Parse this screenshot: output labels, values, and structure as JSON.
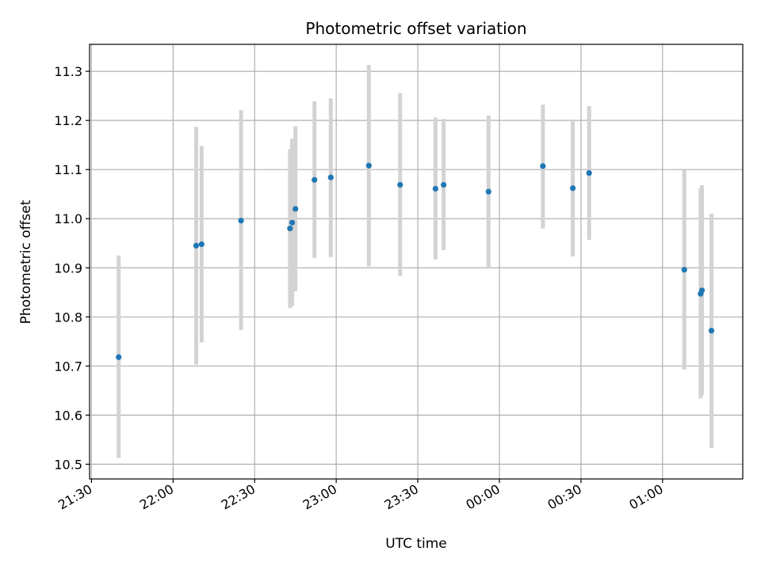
{
  "chart_data": {
    "type": "scatter",
    "title": "Photometric offset variation",
    "xlabel": "UTC time",
    "ylabel": "Photometric offset",
    "x_ticks": [
      "21:30",
      "22:00",
      "22:30",
      "23:00",
      "23:30",
      "00:00",
      "00:30",
      "01:00"
    ],
    "x_tick_minutes": [
      0,
      30,
      60,
      90,
      120,
      150,
      180,
      210
    ],
    "xlim_minutes": [
      -0.7,
      239.5
    ],
    "y_ticks": [
      "10.5",
      "10.6",
      "10.7",
      "10.8",
      "10.9",
      "11.0",
      "11.1",
      "11.2",
      "11.3"
    ],
    "ylim": [
      10.47,
      11.355
    ],
    "grid": true,
    "colors": {
      "point": "#1f77b4",
      "errorbar": "#d3d3d3",
      "grid": "#b0b0b0"
    },
    "series": [
      {
        "points": [
          {
            "t": 10,
            "y": 10.718,
            "lo": 10.513,
            "hi": 10.925
          },
          {
            "t": 38.5,
            "y": 10.945,
            "lo": 10.703,
            "hi": 11.187
          },
          {
            "t": 40.5,
            "y": 10.948,
            "lo": 10.748,
            "hi": 11.148
          },
          {
            "t": 55,
            "y": 10.996,
            "lo": 10.773,
            "hi": 11.221
          },
          {
            "t": 73,
            "y": 10.98,
            "lo": 10.818,
            "hi": 11.142
          },
          {
            "t": 73.8,
            "y": 10.992,
            "lo": 10.822,
            "hi": 11.163
          },
          {
            "t": 75,
            "y": 11.02,
            "lo": 10.852,
            "hi": 11.188
          },
          {
            "t": 82,
            "y": 11.079,
            "lo": 10.92,
            "hi": 11.239
          },
          {
            "t": 88,
            "y": 11.084,
            "lo": 10.922,
            "hi": 11.245
          },
          {
            "t": 102,
            "y": 11.108,
            "lo": 10.903,
            "hi": 11.313
          },
          {
            "t": 113.5,
            "y": 11.069,
            "lo": 10.883,
            "hi": 11.256
          },
          {
            "t": 126.5,
            "y": 11.061,
            "lo": 10.917,
            "hi": 11.206
          },
          {
            "t": 129.5,
            "y": 11.069,
            "lo": 10.936,
            "hi": 11.203
          },
          {
            "t": 146,
            "y": 11.055,
            "lo": 10.9,
            "hi": 11.21
          },
          {
            "t": 166,
            "y": 11.107,
            "lo": 10.98,
            "hi": 11.232
          },
          {
            "t": 177,
            "y": 11.062,
            "lo": 10.923,
            "hi": 11.198
          },
          {
            "t": 183,
            "y": 11.093,
            "lo": 10.957,
            "hi": 11.229
          },
          {
            "t": 218,
            "y": 10.896,
            "lo": 10.693,
            "hi": 11.099
          },
          {
            "t": 224,
            "y": 10.847,
            "lo": 10.634,
            "hi": 11.062
          },
          {
            "t": 224.5,
            "y": 10.854,
            "lo": 10.64,
            "hi": 11.068
          },
          {
            "t": 228,
            "y": 10.772,
            "lo": 10.533,
            "hi": 11.01
          }
        ]
      }
    ]
  }
}
